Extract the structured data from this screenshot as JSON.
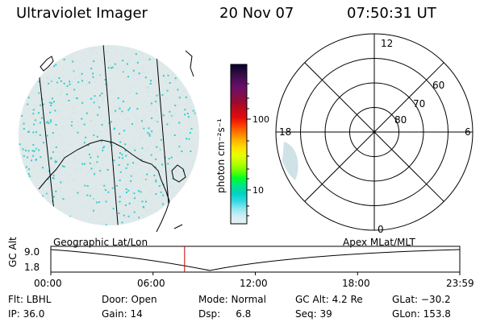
{
  "header": {
    "instrument": "Ultraviolet Imager",
    "date": "20 Nov 07",
    "time": "07:50:31 UT"
  },
  "colorbar": {
    "label": "photon cm⁻²s⁻¹",
    "ticks": [
      "100",
      "10"
    ],
    "colors": [
      "#000033",
      "#2b0b3a",
      "#4b0e58",
      "#6a0f66",
      "#7f0f4f",
      "#9b0b2e",
      "#c20b1a",
      "#e10b0b",
      "#ff3a00",
      "#ff7a00",
      "#ffb100",
      "#ffe000",
      "#e7ff00",
      "#b8ff00",
      "#6eff00",
      "#00ff2a",
      "#00e38a",
      "#00d3c0",
      "#31d8e6",
      "#8fe6f0",
      "#cfeff3",
      "#e8f0f1"
    ]
  },
  "polar": {
    "mlt_labels": {
      "top": "12",
      "bottom": "0",
      "left": "18",
      "right": "6"
    },
    "lat_labels": [
      "60",
      "70",
      "80"
    ]
  },
  "timeline": {
    "y_axis_label": "GC Alt",
    "y_ticks": [
      "9.0",
      "1.8"
    ],
    "left_title": "Geographic Lat/Lon",
    "right_title": "Apex MLat/MLT",
    "x_ticks": [
      "00:00",
      "06:00",
      "12:00",
      "18:00",
      "23:59"
    ],
    "current_time_fraction": 0.327
  },
  "info": {
    "row1": {
      "filter": "Flt: LBHL",
      "door": "Door: Open",
      "mode": "Mode: Normal",
      "gc_alt": "GC Alt: 4.2 Re",
      "glat": "GLat: −30.2"
    },
    "row2": {
      "ip": "IP: 36.0",
      "gain": "Gain: 14",
      "dsp": "Dsp:     6.8",
      "seq": "Seq: 39",
      "glon": "GLon: 153.8"
    }
  },
  "style": {
    "accent_red": "#cc0000",
    "uv_cyan": "#33cccc",
    "uv_pale": "#d6e6e8"
  }
}
